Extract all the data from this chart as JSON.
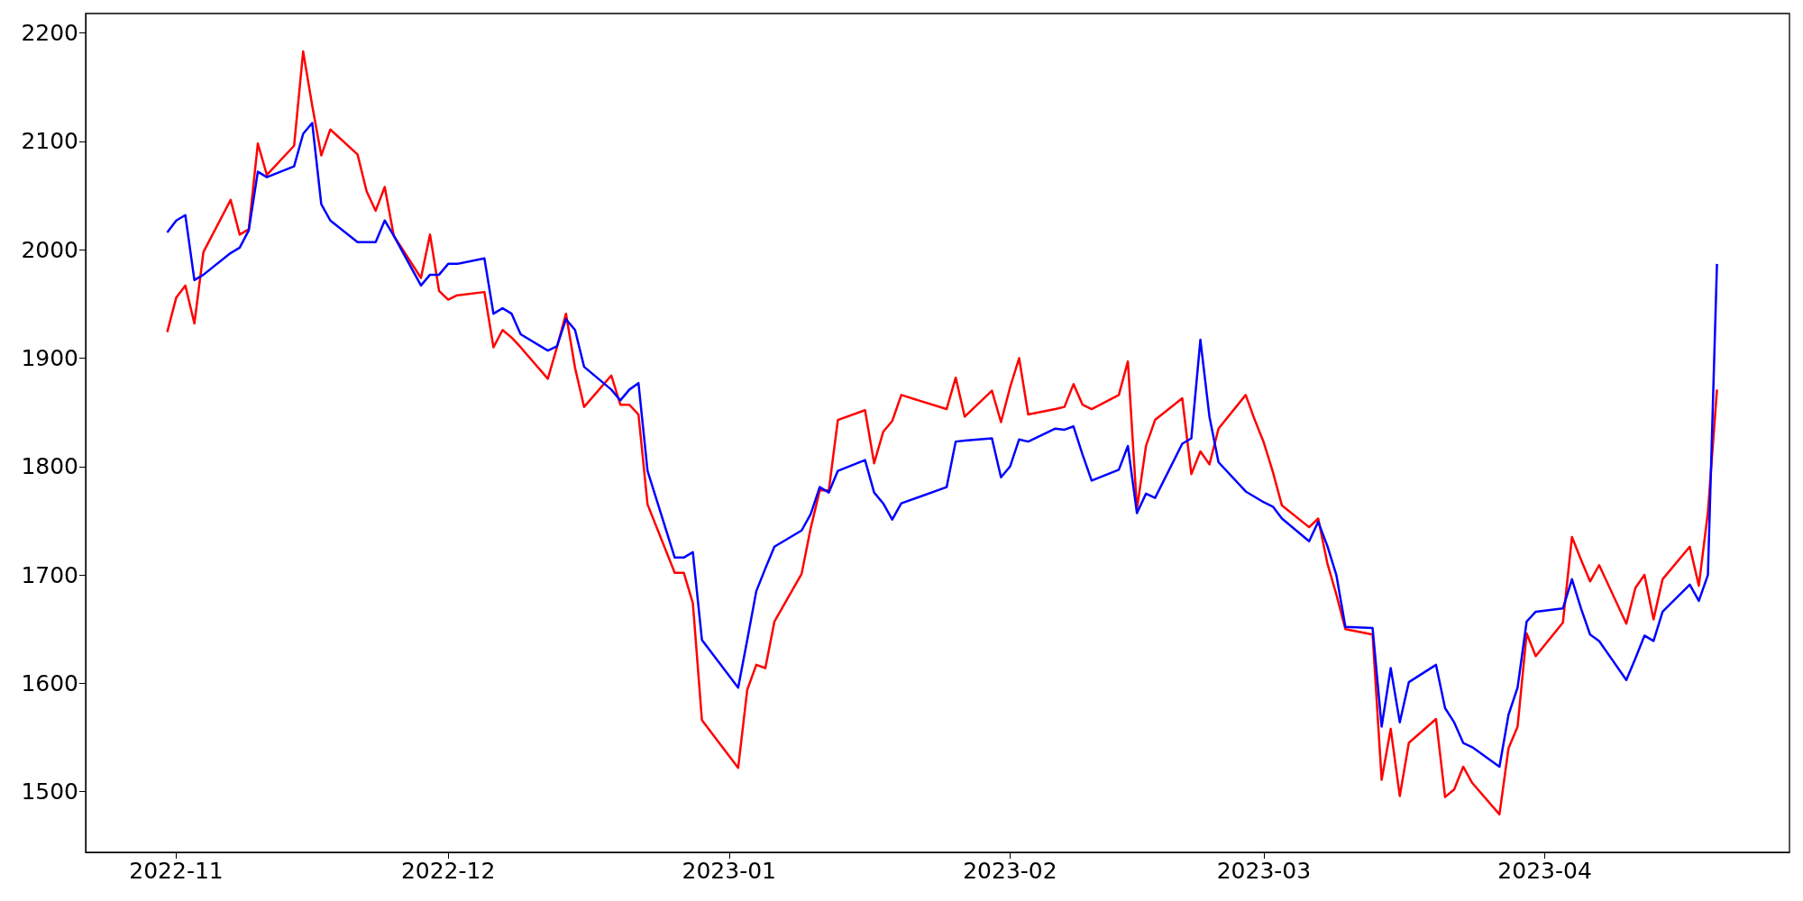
{
  "chart_data": {
    "type": "line",
    "x": [
      "2022-10-31",
      "2022-11-01",
      "2022-11-02",
      "2022-11-03",
      "2022-11-04",
      "2022-11-07",
      "2022-11-08",
      "2022-11-09",
      "2022-11-10",
      "2022-11-11",
      "2022-11-14",
      "2022-11-15",
      "2022-11-16",
      "2022-11-17",
      "2022-11-18",
      "2022-11-21",
      "2022-11-22",
      "2022-11-23",
      "2022-11-24",
      "2022-11-25",
      "2022-11-28",
      "2022-11-29",
      "2022-11-30",
      "2022-12-01",
      "2022-12-02",
      "2022-12-05",
      "2022-12-06",
      "2022-12-07",
      "2022-12-08",
      "2022-12-09",
      "2022-12-12",
      "2022-12-13",
      "2022-12-14",
      "2022-12-15",
      "2022-12-16",
      "2022-12-19",
      "2022-12-20",
      "2022-12-21",
      "2022-12-22",
      "2022-12-23",
      "2022-12-26",
      "2022-12-27",
      "2022-12-28",
      "2022-12-29",
      "2023-01-02",
      "2023-01-03",
      "2023-01-04",
      "2023-01-05",
      "2023-01-06",
      "2023-01-09",
      "2023-01-10",
      "2023-01-11",
      "2023-01-12",
      "2023-01-13",
      "2023-01-16",
      "2023-01-17",
      "2023-01-18",
      "2023-01-19",
      "2023-01-20",
      "2023-01-25",
      "2023-01-26",
      "2023-01-27",
      "2023-01-30",
      "2023-01-31",
      "2023-02-01",
      "2023-02-02",
      "2023-02-03",
      "2023-02-06",
      "2023-02-07",
      "2023-02-08",
      "2023-02-09",
      "2023-02-10",
      "2023-02-13",
      "2023-02-14",
      "2023-02-15",
      "2023-02-16",
      "2023-02-17",
      "2023-02-20",
      "2023-02-21",
      "2023-02-22",
      "2023-02-23",
      "2023-02-24",
      "2023-02-27",
      "2023-02-28",
      "2023-03-01",
      "2023-03-02",
      "2023-03-03",
      "2023-03-06",
      "2023-03-07",
      "2023-03-08",
      "2023-03-09",
      "2023-03-10",
      "2023-03-13",
      "2023-03-14",
      "2023-03-15",
      "2023-03-16",
      "2023-03-17",
      "2023-03-20",
      "2023-03-21",
      "2023-03-22",
      "2023-03-23",
      "2023-03-24",
      "2023-03-27",
      "2023-03-28",
      "2023-03-29",
      "2023-03-30",
      "2023-03-31",
      "2023-04-03",
      "2023-04-04",
      "2023-04-05",
      "2023-04-06",
      "2023-04-07",
      "2023-04-10",
      "2023-04-11",
      "2023-04-12",
      "2023-04-13",
      "2023-04-14",
      "2023-04-17",
      "2023-04-18",
      "2023-04-19",
      "2023-04-20"
    ],
    "series": [
      {
        "color": "#ff0000",
        "values": [
          1924,
          1956,
          1967,
          1932,
          1998,
          2046,
          2014,
          2019,
          2098,
          2069,
          2096,
          2183,
          2133,
          2087,
          2111,
          2088,
          2054,
          2036,
          2058,
          2013,
          1974,
          2014,
          1962,
          1954,
          1958,
          1961,
          1910,
          1926,
          1919,
          1910,
          1881,
          1910,
          1941,
          1891,
          1855,
          1884,
          1857,
          1857,
          1848,
          1765,
          1702,
          1702,
          1674,
          1566,
          1522,
          1594,
          1617,
          1614,
          1657,
          1701,
          1743,
          1778,
          1778,
          1843,
          1852,
          1803,
          1832,
          1842,
          1866,
          1853,
          1882,
          1846,
          1870,
          1841,
          1873,
          1900,
          1848,
          1853,
          1855,
          1876,
          1857,
          1853,
          1866,
          1897,
          1761,
          1819,
          1843,
          1863,
          1793,
          1814,
          1802,
          1835,
          1866,
          1843,
          1822,
          1795,
          1764,
          1744,
          1752,
          1711,
          1682,
          1650,
          1645,
          1511,
          1558,
          1496,
          1545,
          1567,
          1495,
          1502,
          1523,
          1508,
          1479,
          1540,
          1560,
          1646,
          1625,
          1656,
          1735,
          1714,
          1694,
          1709,
          1655,
          1688,
          1700,
          1659,
          1696,
          1726,
          1690,
          1758,
          1871
        ]
      },
      {
        "color": "#0000ff",
        "values": [
          2016,
          2027,
          2032,
          1972,
          1977,
          1997,
          2002,
          2018,
          2072,
          2067,
          2077,
          2107,
          2117,
          2042,
          2027,
          2007,
          2007,
          2007,
          2027,
          2013,
          1967,
          1977,
          1977,
          1987,
          1987,
          1992,
          1941,
          1946,
          1941,
          1922,
          1907,
          1911,
          1936,
          1926,
          1892,
          1871,
          1861,
          1871,
          1877,
          1796,
          1716,
          1716,
          1721,
          1640,
          1596,
          1640,
          1685,
          1706,
          1726,
          1741,
          1756,
          1781,
          1776,
          1796,
          1806,
          1776,
          1766,
          1751,
          1766,
          1781,
          1823,
          1824,
          1826,
          1790,
          1800,
          1825,
          1823,
          1835,
          1834,
          1837,
          1811,
          1787,
          1797,
          1819,
          1757,
          1775,
          1771,
          1821,
          1826,
          1917,
          1846,
          1804,
          1777,
          1772,
          1767,
          1763,
          1752,
          1731,
          1749,
          1727,
          1700,
          1652,
          1651,
          1560,
          1614,
          1564,
          1601,
          1617,
          1577,
          1564,
          1545,
          1541,
          1523,
          1571,
          1596,
          1657,
          1666,
          1669,
          1696,
          1669,
          1645,
          1639,
          1603,
          1623,
          1644,
          1639,
          1666,
          1691,
          1676,
          1700,
          1987
        ]
      }
    ],
    "xlim": [
      "2022-10-22",
      "2023-04-28"
    ],
    "xticks": [
      "2022-11",
      "2022-12",
      "2023-01",
      "2023-02",
      "2023-03",
      "2023-04"
    ],
    "ylim": [
      1444,
      2218
    ],
    "yticks": [
      1500,
      1600,
      1700,
      1800,
      1900,
      2000,
      2100,
      2200
    ],
    "grid": false
  }
}
